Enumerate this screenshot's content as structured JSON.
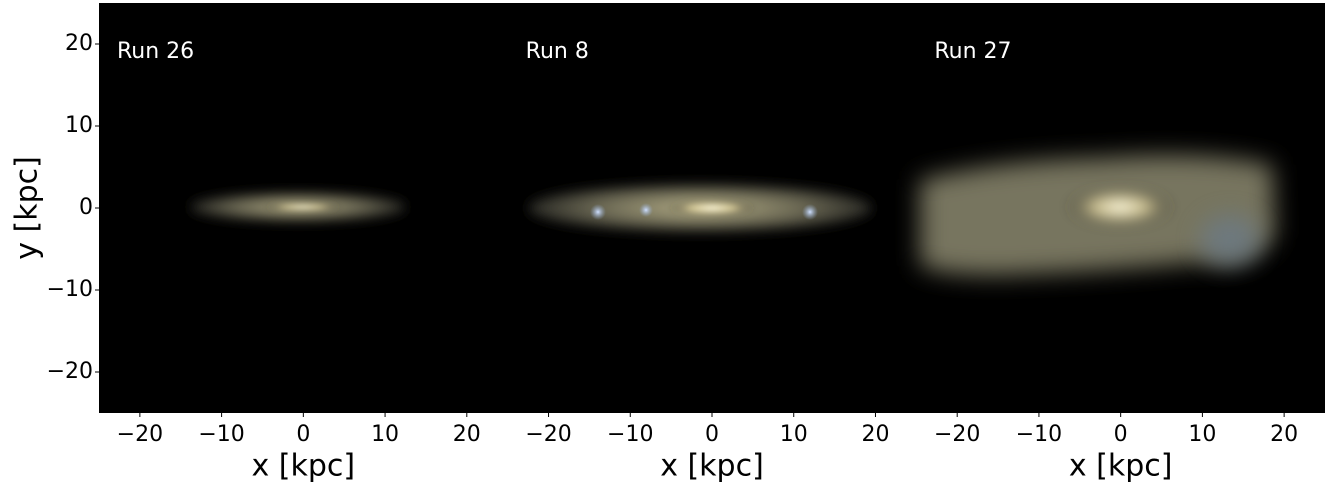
{
  "chart_data": [
    {
      "type": "image",
      "title": "Run 26",
      "xlabel": "x [kpc]",
      "ylabel": "y [kpc]",
      "xlim": [
        -25,
        25
      ],
      "ylim": [
        -25,
        25
      ],
      "xticks": [
        {
          "value": -20,
          "label": "−20"
        },
        {
          "value": -10,
          "label": "−10"
        },
        0,
        10,
        20
      ],
      "yticks": [
        {
          "value": -20,
          "label": "−20"
        },
        {
          "value": -10,
          "label": "−10"
        },
        0,
        10,
        20
      ]
    },
    {
      "type": "image",
      "title": "Run 8",
      "xlabel": "x [kpc]",
      "xlim": [
        -25,
        25
      ],
      "ylim": [
        -25,
        25
      ],
      "xticks": [
        {
          "value": -20,
          "label": "−20"
        },
        {
          "value": -10,
          "label": "−10"
        },
        0,
        10,
        20
      ]
    },
    {
      "type": "image",
      "title": "Run 27",
      "xlabel": "x [kpc]",
      "xlim": [
        -25,
        25
      ],
      "ylim": [
        -25,
        25
      ],
      "xticks": [
        {
          "value": -20,
          "label": "−20"
        },
        {
          "value": -10,
          "label": "−10"
        },
        0,
        10,
        20
      ]
    }
  ]
}
